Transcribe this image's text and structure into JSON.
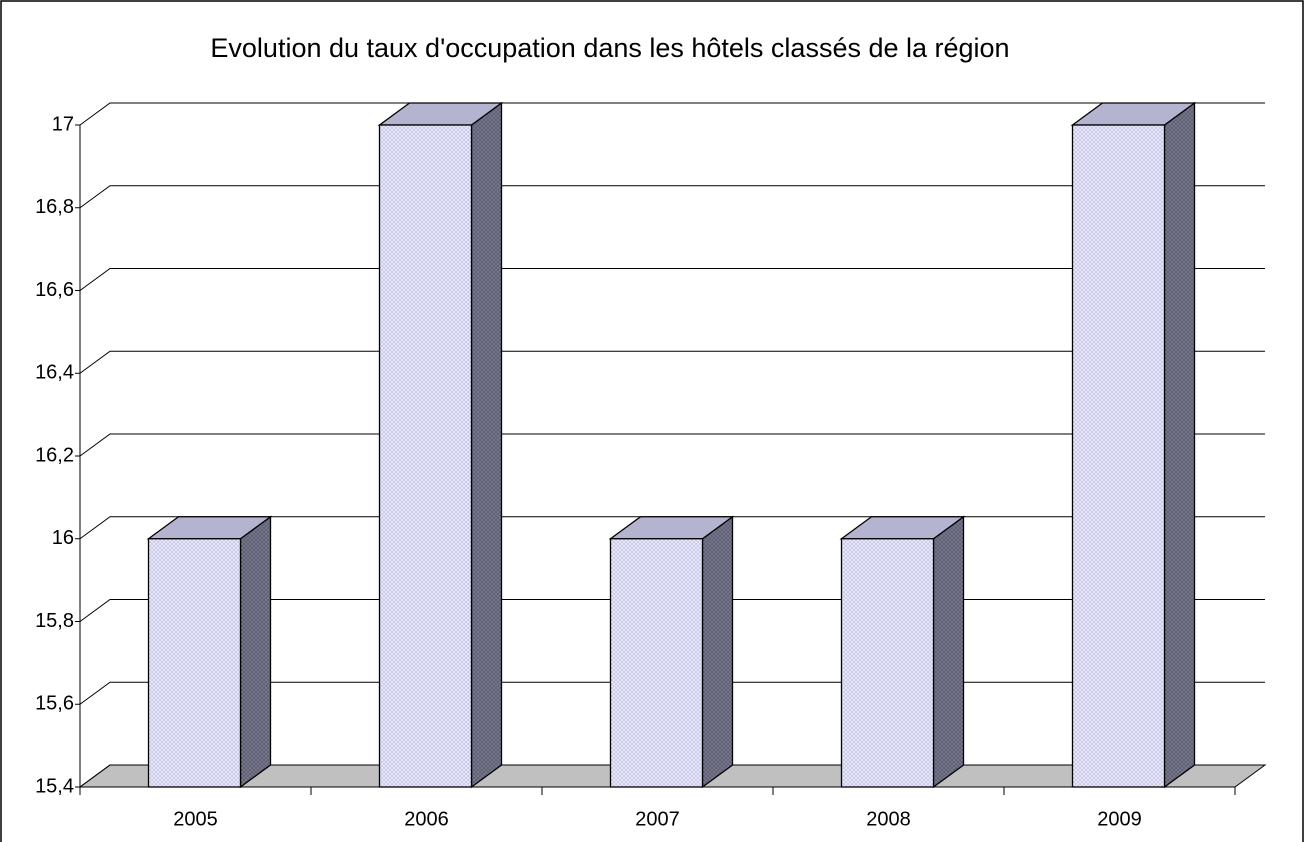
{
  "chart_data": {
    "type": "bar3d",
    "title": "Evolution du taux d'occupation dans les hôtels classés de la région",
    "categories": [
      "2005",
      "2006",
      "2007",
      "2008",
      "2009"
    ],
    "values": [
      16,
      17,
      16,
      16,
      17
    ],
    "color": "#e2e2f6",
    "ylim": [
      15.4,
      17
    ],
    "yticks": [
      {
        "value": 15.4,
        "label": "15,4"
      },
      {
        "value": 15.6,
        "label": "15,6"
      },
      {
        "value": 15.8,
        "label": "15,8"
      },
      16,
      {
        "value": 16.2,
        "label": "16,2"
      },
      {
        "value": 16.4,
        "label": "16,4"
      },
      {
        "value": 16.6,
        "label": "16,6"
      },
      {
        "value": 16.8,
        "label": "16,8"
      },
      17
    ],
    "grid": true
  }
}
